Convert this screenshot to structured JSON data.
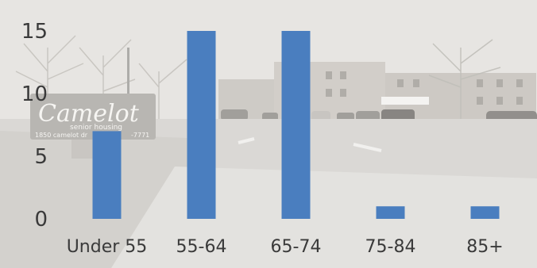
{
  "chart_data": {
    "type": "bar",
    "categories": [
      "Under 55",
      "55-64",
      "65-74",
      "75-84",
      "85+"
    ],
    "values": [
      7,
      15,
      15,
      1,
      1
    ],
    "ylim": [
      0,
      15
    ],
    "yticks": [
      0,
      5,
      10,
      15
    ],
    "bar_color": "#4a7ebf",
    "grid": false,
    "legend": "none"
  },
  "background": {
    "sign_brand": "Camelot",
    "sign_tagline": "senior housing",
    "sign_address": "1850 camelot dr",
    "sign_phone": "-7771",
    "sky_color": "#e3e1dd",
    "ground_color": "#cfcdca"
  }
}
